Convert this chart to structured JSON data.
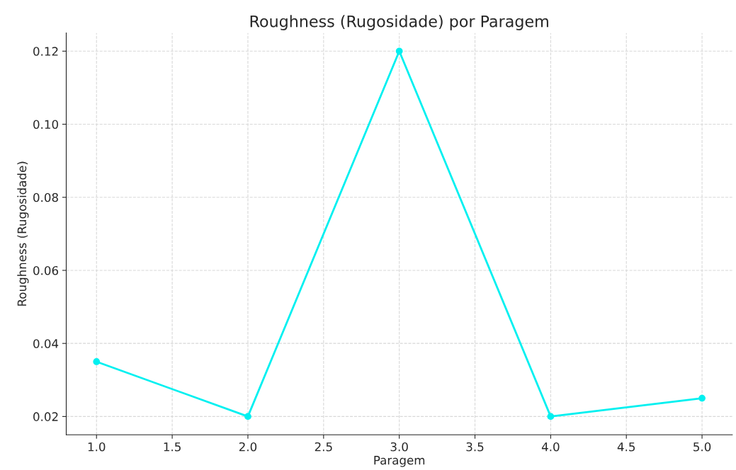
{
  "chart_data": {
    "type": "line",
    "title": "Roughness (Rugosidade) por Paragem",
    "xlabel": "Paragem",
    "ylabel": "Roughness (Rugosidade)",
    "x": [
      1.0,
      2.0,
      3.0,
      4.0,
      5.0
    ],
    "series": [
      {
        "color": "#00f0f0",
        "values": [
          0.035,
          0.02,
          0.12,
          0.02,
          0.025
        ]
      }
    ],
    "xlim": [
      0.8,
      5.2
    ],
    "ylim": [
      0.015,
      0.125
    ],
    "xticks": [
      {
        "value": 1.0,
        "label": "1.0"
      },
      1.5,
      {
        "value": 2.0,
        "label": "2.0"
      },
      2.5,
      {
        "value": 3.0,
        "label": "3.0"
      },
      3.5,
      {
        "value": 4.0,
        "label": "4.0"
      },
      4.5,
      {
        "value": 5.0,
        "label": "5.0"
      }
    ],
    "yticks": [
      0.02,
      0.04,
      0.06,
      0.08,
      {
        "value": 0.1,
        "label": "0.10"
      },
      0.12
    ],
    "grid": true,
    "marker": "circle",
    "line_style": "solid"
  }
}
